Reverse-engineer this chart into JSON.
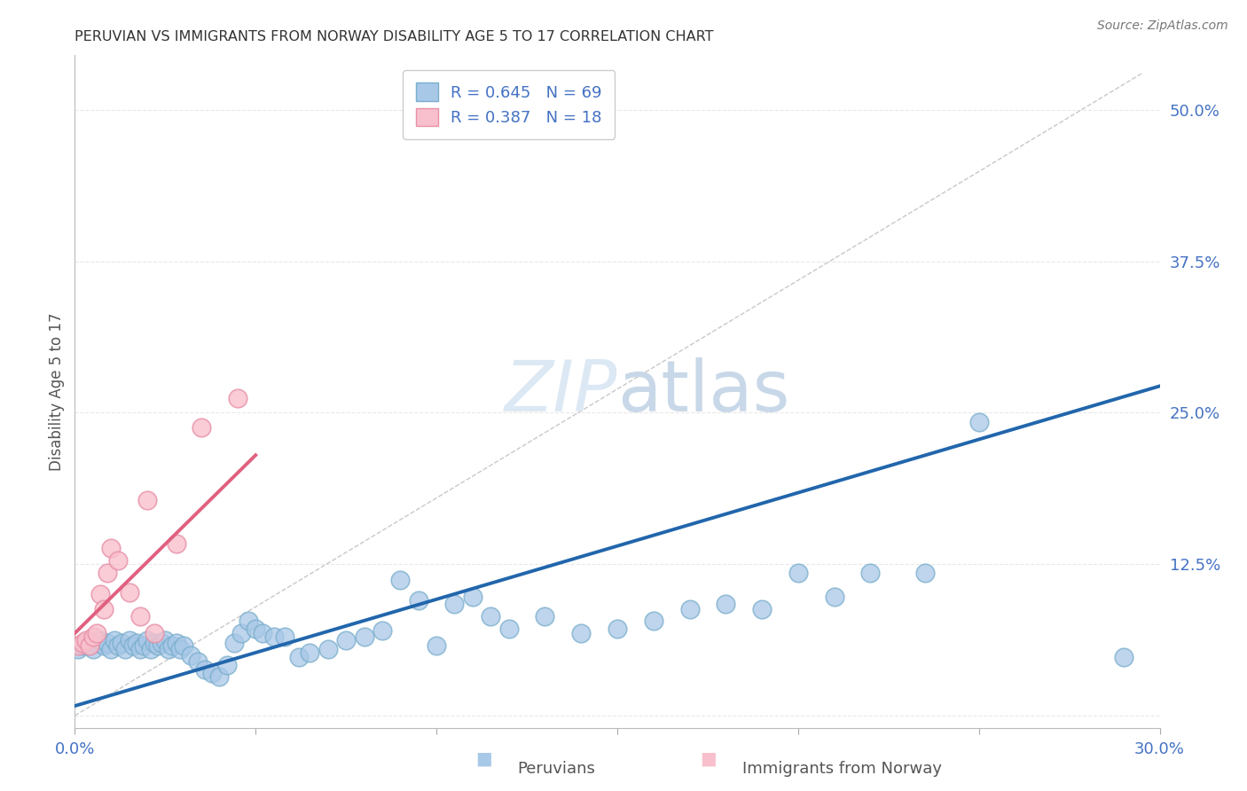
{
  "title": "PERUVIAN VS IMMIGRANTS FROM NORWAY DISABILITY AGE 5 TO 17 CORRELATION CHART",
  "source": "Source: ZipAtlas.com",
  "ylabel": "Disability Age 5 to 17",
  "xlim": [
    0.0,
    0.3
  ],
  "ylim": [
    -0.01,
    0.545
  ],
  "xticks": [
    0.0,
    0.05,
    0.1,
    0.15,
    0.2,
    0.25,
    0.3
  ],
  "yticks": [
    0.0,
    0.125,
    0.25,
    0.375,
    0.5
  ],
  "ytick_labels": [
    "",
    "12.5%",
    "25.0%",
    "37.5%",
    "50.0%"
  ],
  "xtick_labels": [
    "0.0%",
    "",
    "",
    "",
    "",
    "",
    "30.0%"
  ],
  "blue_fill_color": "#a8c8e8",
  "blue_edge_color": "#7aaecc",
  "pink_fill_color": "#f8c0cc",
  "pink_edge_color": "#e890a8",
  "blue_line_color": "#2166ac",
  "pink_line_color": "#e06080",
  "dashed_line_color": "#c8c8c8",
  "legend_text_color": "#4472c4",
  "tick_color": "#4472c4",
  "watermark_color": "#dce8f4",
  "grid_color": "#e8e8e8",
  "blue_scatter_x": [
    0.001,
    0.002,
    0.003,
    0.004,
    0.005,
    0.006,
    0.007,
    0.008,
    0.009,
    0.01,
    0.011,
    0.012,
    0.013,
    0.014,
    0.015,
    0.016,
    0.017,
    0.018,
    0.019,
    0.02,
    0.021,
    0.022,
    0.023,
    0.024,
    0.025,
    0.026,
    0.027,
    0.028,
    0.029,
    0.03,
    0.032,
    0.034,
    0.036,
    0.038,
    0.04,
    0.042,
    0.044,
    0.046,
    0.048,
    0.05,
    0.052,
    0.055,
    0.058,
    0.062,
    0.065,
    0.07,
    0.075,
    0.08,
    0.085,
    0.09,
    0.095,
    0.1,
    0.105,
    0.11,
    0.115,
    0.12,
    0.13,
    0.14,
    0.15,
    0.16,
    0.17,
    0.18,
    0.19,
    0.2,
    0.21,
    0.22,
    0.235,
    0.25,
    0.29
  ],
  "blue_scatter_y": [
    0.055,
    0.058,
    0.06,
    0.058,
    0.055,
    0.06,
    0.062,
    0.058,
    0.06,
    0.055,
    0.062,
    0.058,
    0.06,
    0.055,
    0.062,
    0.058,
    0.06,
    0.055,
    0.058,
    0.062,
    0.055,
    0.06,
    0.058,
    0.06,
    0.062,
    0.055,
    0.058,
    0.06,
    0.055,
    0.058,
    0.05,
    0.045,
    0.038,
    0.035,
    0.032,
    0.042,
    0.06,
    0.068,
    0.078,
    0.072,
    0.068,
    0.065,
    0.065,
    0.048,
    0.052,
    0.055,
    0.062,
    0.065,
    0.07,
    0.112,
    0.095,
    0.058,
    0.092,
    0.098,
    0.082,
    0.072,
    0.082,
    0.068,
    0.072,
    0.078,
    0.088,
    0.092,
    0.088,
    0.118,
    0.098,
    0.118,
    0.118,
    0.242,
    0.048
  ],
  "blue_scatter_y2": [],
  "pink_scatter_x": [
    0.001,
    0.002,
    0.003,
    0.004,
    0.005,
    0.006,
    0.007,
    0.008,
    0.009,
    0.01,
    0.012,
    0.015,
    0.018,
    0.02,
    0.022,
    0.028,
    0.035,
    0.045
  ],
  "pink_scatter_y": [
    0.058,
    0.06,
    0.062,
    0.058,
    0.065,
    0.068,
    0.1,
    0.088,
    0.118,
    0.138,
    0.128,
    0.102,
    0.082,
    0.178,
    0.068,
    0.142,
    0.238,
    0.262
  ],
  "blue_line_x": [
    0.0,
    0.3
  ],
  "blue_line_y": [
    0.008,
    0.272
  ],
  "pink_line_x": [
    0.0,
    0.05
  ],
  "pink_line_y": [
    0.068,
    0.215
  ],
  "diag_line_x": [
    0.0,
    0.295
  ],
  "diag_line_y": [
    0.0,
    0.53
  ],
  "footer_blue_label": "Peruvians",
  "footer_pink_label": "Immigrants from Norway"
}
